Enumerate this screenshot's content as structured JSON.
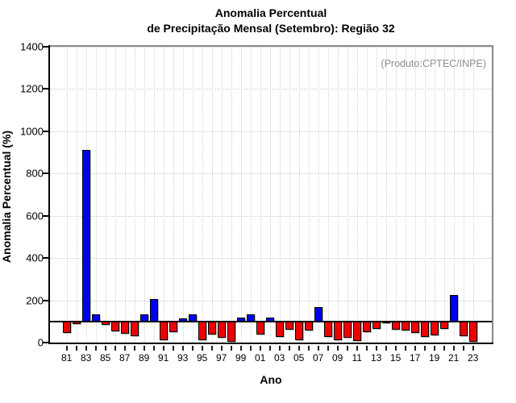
{
  "title": {
    "line1": "Anomalia Percentual",
    "line2": "de Precipitação Mensal (Setembro): Região 32"
  },
  "annotation": "(Produto:CPTEC/INPE)",
  "chart_data": {
    "type": "bar",
    "title": "Anomalia Percentual de Precipitação Mensal (Setembro): Região 32",
    "xlabel": "Ano",
    "ylabel": "Anomalia Percentual (%)",
    "ylim": [
      0,
      1400
    ],
    "yticks": [
      0,
      200,
      400,
      600,
      800,
      1000,
      1200,
      1400
    ],
    "baseline": 100,
    "grid": true,
    "legend": "none",
    "x_tick_labels_shown": [
      "81",
      "83",
      "85",
      "87",
      "89",
      "91",
      "93",
      "95",
      "97",
      "99",
      "01",
      "03",
      "05",
      "07",
      "09",
      "11",
      "13",
      "15",
      "17",
      "19",
      "21",
      "23"
    ],
    "years": [
      1981,
      1982,
      1983,
      1984,
      1985,
      1986,
      1987,
      1988,
      1989,
      1990,
      1991,
      1992,
      1993,
      1994,
      1995,
      1996,
      1997,
      1998,
      1999,
      2000,
      2001,
      2002,
      2003,
      2004,
      2005,
      2006,
      2007,
      2008,
      2009,
      2010,
      2011,
      2012,
      2013,
      2014,
      2015,
      2016,
      2017,
      2018,
      2019,
      2020,
      2021,
      2022,
      2023
    ],
    "values": [
      45,
      88,
      910,
      135,
      85,
      55,
      42,
      32,
      135,
      205,
      10,
      48,
      113,
      135,
      10,
      38,
      22,
      5,
      118,
      135,
      40,
      118,
      27,
      60,
      10,
      58,
      168,
      26,
      10,
      22,
      8,
      48,
      65,
      92,
      60,
      58,
      47,
      26,
      35,
      65,
      225,
      30,
      5
    ],
    "colors": {
      "above_baseline": "#0000ee",
      "below_baseline": "#ee0000",
      "baseline_line": "#000000",
      "annotation_text": "#8f8f8f"
    }
  }
}
